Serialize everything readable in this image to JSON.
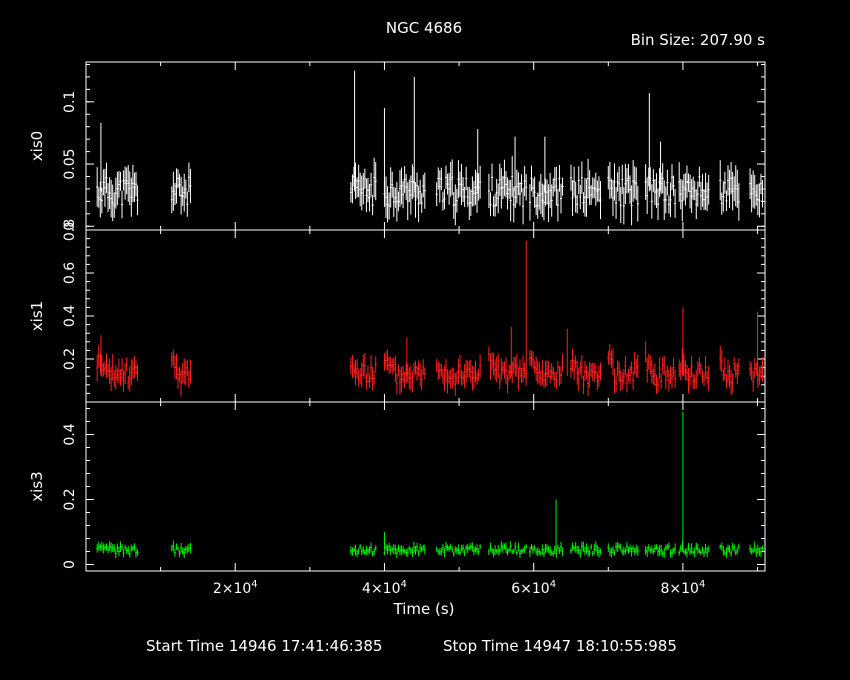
{
  "title": "NGC 4686",
  "bin_label": "Bin Size: 207.90 s",
  "footer": {
    "start": "Start Time 14946 17:41:46:385",
    "stop": "Stop Time 14947 18:10:55:985"
  },
  "chart_data": {
    "type": "line",
    "title": "NGC 4686",
    "xlabel": "Time (s)",
    "xlim": [
      0,
      91000
    ],
    "x_ticks": [
      {
        "value": 20000,
        "mant": "2×10",
        "exp": "4"
      },
      {
        "value": 40000,
        "mant": "4×10",
        "exp": "4"
      },
      {
        "value": 60000,
        "mant": "6×10",
        "exp": "4"
      },
      {
        "value": 80000,
        "mant": "8×10",
        "exp": "4"
      }
    ],
    "panels": [
      {
        "name": "xis0",
        "ylabel": "xis0",
        "color": "#ffffff",
        "ylim": [
          -0.003,
          0.132
        ],
        "yticks": [
          {
            "v": 0,
            "label": "0"
          },
          {
            "v": 0.05,
            "label": "0.05"
          },
          {
            "v": 0.1,
            "label": "0.1"
          }
        ],
        "base": 0.028,
        "ripple": 0.012,
        "seed": 11,
        "spikes": [
          [
            2000,
            0.083
          ],
          [
            36000,
            0.125
          ],
          [
            40000,
            0.095
          ],
          [
            44000,
            0.12
          ],
          [
            52500,
            0.078
          ],
          [
            57500,
            0.072
          ],
          [
            61500,
            0.072
          ],
          [
            75500,
            0.107
          ],
          [
            77000,
            0.068
          ]
        ]
      },
      {
        "name": "xis1",
        "ylabel": "xis1",
        "color": "#ff2020",
        "ylim": [
          0,
          0.8
        ],
        "yticks": [
          {
            "v": 0.2,
            "label": "0.2"
          },
          {
            "v": 0.4,
            "label": "0.4"
          },
          {
            "v": 0.6,
            "label": "0.6"
          },
          {
            "v": 0.8,
            "label": "0.8"
          }
        ],
        "base": 0.12,
        "ripple": 0.045,
        "seed": 23,
        "spikes": [
          [
            2000,
            0.31
          ],
          [
            43000,
            0.3
          ],
          [
            57000,
            0.35
          ],
          [
            59000,
            0.75
          ],
          [
            64500,
            0.34
          ],
          [
            80000,
            0.44
          ],
          [
            90000,
            0.42
          ]
        ]
      },
      {
        "name": "xis3",
        "ylabel": "xis3",
        "color": "#00ee00",
        "ylim": [
          -0.02,
          0.5
        ],
        "yticks": [
          {
            "v": 0,
            "label": "0"
          },
          {
            "v": 0.2,
            "label": "0.2"
          },
          {
            "v": 0.4,
            "label": "0.4"
          }
        ],
        "base": 0.045,
        "ripple": 0.012,
        "seed": 37,
        "spikes": [
          [
            40000,
            0.1
          ],
          [
            63000,
            0.2
          ],
          [
            80000,
            0.47
          ]
        ]
      }
    ],
    "segments": [
      [
        1500,
        7000
      ],
      [
        11500,
        14000
      ],
      [
        35500,
        39000
      ],
      [
        40000,
        45500
      ],
      [
        47000,
        53000
      ],
      [
        54000,
        59000
      ],
      [
        59500,
        64000
      ],
      [
        65000,
        69000
      ],
      [
        70000,
        74000
      ],
      [
        75000,
        79000
      ],
      [
        79500,
        83500
      ],
      [
        85000,
        87500
      ],
      [
        89000,
        90800
      ]
    ]
  }
}
